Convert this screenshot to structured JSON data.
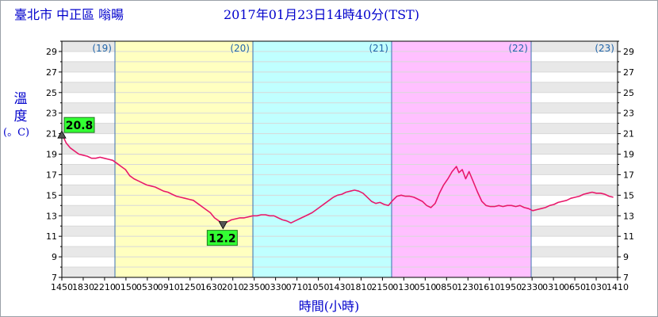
{
  "header": {
    "station": "臺北市 中正區 嗡暘",
    "timestamp": "2017年01月23日14時40分(TST)"
  },
  "chart_data": {
    "type": "line",
    "title": "臺北市 中正區 嗡暘",
    "ylabel_chars": [
      "溫",
      "度"
    ],
    "ylabel_unit": "(。C)",
    "xlabel": "時間(小時)",
    "ylim": [
      7,
      30
    ],
    "yticks": [
      7,
      9,
      11,
      13,
      15,
      17,
      19,
      21,
      23,
      25,
      27,
      29
    ],
    "x_tick_labels": [
      "1450",
      "1830",
      "2210",
      "0150",
      "0530",
      "0910",
      "1250",
      "1630",
      "2010",
      "2350",
      "0330",
      "0710",
      "1050",
      "1430",
      "1810",
      "2150",
      "0130",
      "0510",
      "0850",
      "1230",
      "1610",
      "1950",
      "2330",
      "0310",
      "0650",
      "1030",
      "1410"
    ],
    "day_labels": [
      "(19)",
      "(20)",
      "(21)",
      "(22)",
      "(23)"
    ],
    "day_regions": [
      {
        "label": "(19)",
        "color": "#ffffff"
      },
      {
        "label": "(20)",
        "color": "#ffffc0"
      },
      {
        "label": "(21)",
        "color": "#c0ffff"
      },
      {
        "label": "(22)",
        "color": "#ffc0ff"
      },
      {
        "label": "(23)",
        "color": "#ffffff"
      }
    ],
    "series": [
      {
        "color": "#e8196b",
        "x_unit": "hours since 01/18 14:50",
        "points": [
          [
            0,
            21.0
          ],
          [
            0.5,
            20.1
          ],
          [
            1,
            19.6
          ],
          [
            1.5,
            19.3
          ],
          [
            2,
            19.0
          ],
          [
            2.5,
            18.9
          ],
          [
            3,
            18.8
          ],
          [
            3.5,
            18.6
          ],
          [
            4,
            18.6
          ],
          [
            4.5,
            18.7
          ],
          [
            5,
            18.6
          ],
          [
            5.5,
            18.5
          ],
          [
            6,
            18.4
          ],
          [
            6.5,
            18.1
          ],
          [
            7,
            17.8
          ],
          [
            7.5,
            17.5
          ],
          [
            8,
            16.9
          ],
          [
            8.5,
            16.6
          ],
          [
            9,
            16.4
          ],
          [
            9.5,
            16.2
          ],
          [
            10,
            16.0
          ],
          [
            10.5,
            15.9
          ],
          [
            11,
            15.8
          ],
          [
            11.5,
            15.6
          ],
          [
            12,
            15.4
          ],
          [
            12.5,
            15.3
          ],
          [
            13,
            15.1
          ],
          [
            13.5,
            14.9
          ],
          [
            14,
            14.8
          ],
          [
            14.5,
            14.7
          ],
          [
            15,
            14.6
          ],
          [
            15.5,
            14.5
          ],
          [
            16,
            14.2
          ],
          [
            16.5,
            13.9
          ],
          [
            17,
            13.6
          ],
          [
            17.5,
            13.3
          ],
          [
            18,
            12.8
          ],
          [
            18.5,
            12.5
          ],
          [
            19,
            12.2
          ],
          [
            19.5,
            12.4
          ],
          [
            20,
            12.6
          ],
          [
            20.5,
            12.7
          ],
          [
            21,
            12.8
          ],
          [
            21.5,
            12.8
          ],
          [
            22,
            12.9
          ],
          [
            22.5,
            13.0
          ],
          [
            23,
            13.0
          ],
          [
            23.5,
            13.1
          ],
          [
            24,
            13.1
          ],
          [
            24.5,
            13.0
          ],
          [
            25,
            13.0
          ],
          [
            25.5,
            12.8
          ],
          [
            26,
            12.6
          ],
          [
            26.5,
            12.5
          ],
          [
            27,
            12.3
          ],
          [
            27.5,
            12.5
          ],
          [
            28,
            12.7
          ],
          [
            28.5,
            12.9
          ],
          [
            29,
            13.1
          ],
          [
            29.5,
            13.3
          ],
          [
            30,
            13.6
          ],
          [
            30.5,
            13.9
          ],
          [
            31,
            14.2
          ],
          [
            31.5,
            14.5
          ],
          [
            32,
            14.8
          ],
          [
            32.5,
            15.0
          ],
          [
            33,
            15.1
          ],
          [
            33.5,
            15.3
          ],
          [
            34,
            15.4
          ],
          [
            34.5,
            15.5
          ],
          [
            35,
            15.4
          ],
          [
            35.5,
            15.2
          ],
          [
            36,
            14.8
          ],
          [
            36.5,
            14.4
          ],
          [
            37,
            14.2
          ],
          [
            37.5,
            14.3
          ],
          [
            38,
            14.1
          ],
          [
            38.5,
            14.0
          ],
          [
            39,
            14.5
          ],
          [
            39.5,
            14.9
          ],
          [
            40,
            15.0
          ],
          [
            40.5,
            14.9
          ],
          [
            41,
            14.9
          ],
          [
            41.5,
            14.8
          ],
          [
            42,
            14.6
          ],
          [
            42.5,
            14.4
          ],
          [
            43,
            14.0
          ],
          [
            43.5,
            13.8
          ],
          [
            44,
            14.2
          ],
          [
            44.5,
            15.2
          ],
          [
            45,
            16.0
          ],
          [
            45.5,
            16.6
          ],
          [
            46,
            17.3
          ],
          [
            46.5,
            17.8
          ],
          [
            46.8,
            17.2
          ],
          [
            47.2,
            17.5
          ],
          [
            47.6,
            16.6
          ],
          [
            48,
            17.3
          ],
          [
            48.5,
            16.3
          ],
          [
            49,
            15.3
          ],
          [
            49.5,
            14.4
          ],
          [
            50,
            14.0
          ],
          [
            50.5,
            13.9
          ],
          [
            51,
            13.9
          ],
          [
            51.5,
            14.0
          ],
          [
            52,
            13.9
          ],
          [
            52.5,
            14.0
          ],
          [
            53,
            14.0
          ],
          [
            53.5,
            13.9
          ],
          [
            54,
            14.0
          ],
          [
            54.5,
            13.8
          ],
          [
            55,
            13.7
          ],
          [
            55.5,
            13.5
          ],
          [
            56,
            13.6
          ],
          [
            56.5,
            13.7
          ],
          [
            57,
            13.8
          ],
          [
            57.5,
            14.0
          ],
          [
            58,
            14.1
          ],
          [
            58.5,
            14.3
          ],
          [
            59,
            14.4
          ],
          [
            59.5,
            14.5
          ],
          [
            60,
            14.7
          ],
          [
            60.5,
            14.8
          ],
          [
            61,
            14.9
          ],
          [
            61.5,
            15.1
          ],
          [
            62,
            15.2
          ],
          [
            62.5,
            15.3
          ],
          [
            63,
            15.2
          ],
          [
            63.5,
            15.2
          ],
          [
            64,
            15.1
          ],
          [
            64.5,
            14.9
          ],
          [
            65,
            14.8
          ]
        ]
      }
    ],
    "annotations": [
      {
        "type": "max",
        "label": "20.8",
        "value": 20.8
      },
      {
        "type": "min",
        "label": "12.2",
        "value": 12.2
      }
    ]
  }
}
